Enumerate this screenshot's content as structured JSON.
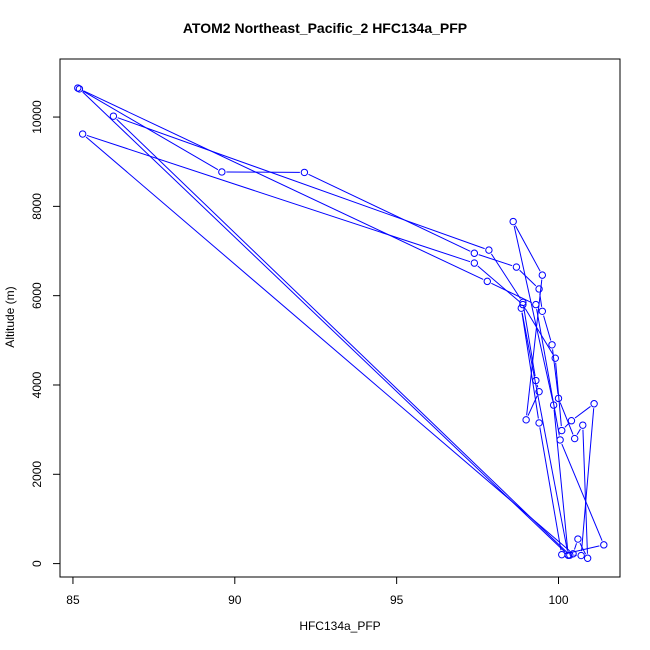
{
  "chart_data": {
    "type": "scatter",
    "title": "ATOM2 Northeast_Pacific_2 HFC134a_PFP",
    "xlabel": "HFC134a_PFP",
    "ylabel": "Altitude (m)",
    "xlim": [
      84.6,
      101.9
    ],
    "ylim": [
      -300,
      11300
    ],
    "x_ticks": [
      85,
      90,
      95,
      100
    ],
    "x_tick_labels": [
      "85",
      "90",
      "95",
      "100"
    ],
    "y_ticks": [
      0,
      2000,
      4000,
      6000,
      8000,
      10000
    ],
    "y_tick_labels": [
      "0",
      "2000",
      "4000",
      "6000",
      "8000",
      "10000"
    ],
    "grid": false,
    "color": "#0000ff",
    "marker": "open-circle",
    "line": true,
    "series": [
      {
        "points": [
          [
            85.15,
            10650
          ],
          [
            89.6,
            8770
          ],
          [
            92.15,
            8760
          ],
          [
            97.4,
            6950
          ],
          [
            98.7,
            6640
          ],
          [
            99.4,
            6150
          ],
          [
            99.5,
            5650
          ],
          [
            99.8,
            4900
          ],
          [
            100.0,
            3700
          ],
          [
            100.5,
            2800
          ],
          [
            100.75,
            3100
          ],
          [
            100.9,
            120
          ],
          [
            100.6,
            550
          ],
          [
            100.45,
            220
          ],
          [
            85.3,
            9620
          ],
          [
            97.4,
            6730
          ],
          [
            98.9,
            5800
          ],
          [
            99.9,
            4600
          ],
          [
            100.1,
            2980
          ],
          [
            100.4,
            3200
          ],
          [
            101.1,
            3580
          ],
          [
            100.7,
            180
          ],
          [
            100.35,
            190
          ],
          [
            86.25,
            10020
          ],
          [
            97.85,
            7020
          ],
          [
            98.9,
            5850
          ],
          [
            99.3,
            4100
          ],
          [
            99.4,
            3850
          ],
          [
            99.0,
            3220
          ],
          [
            99.5,
            6460
          ],
          [
            98.6,
            7660
          ],
          [
            99.85,
            3550
          ],
          [
            100.3,
            190
          ],
          [
            85.2,
            10630
          ],
          [
            97.8,
            6320
          ],
          [
            99.3,
            5800
          ],
          [
            100.05,
            2770
          ],
          [
            101.4,
            420
          ],
          [
            100.1,
            200
          ],
          [
            99.4,
            3150
          ],
          [
            98.85,
            5720
          ],
          [
            100.3,
            190
          ]
        ]
      }
    ]
  }
}
